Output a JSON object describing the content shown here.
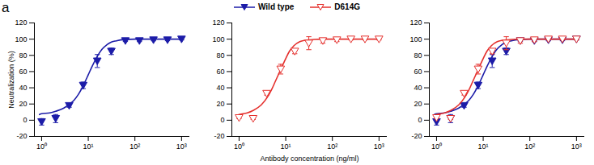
{
  "figure_label": "a",
  "chart_data": [
    {
      "type": "scatter",
      "log": "x",
      "legend": "top",
      "x_label": null,
      "y_label": "Neutralization (%)",
      "xlim": [
        0.7,
        1500
      ],
      "ylim": [
        -20,
        120
      ],
      "xticks": [
        {
          "value": 1,
          "label": "10⁰"
        },
        {
          "value": 10,
          "label": "10¹"
        },
        {
          "value": 100,
          "label": "10²"
        },
        {
          "value": 1000,
          "label": "10³"
        }
      ],
      "yticks": [
        -20,
        0,
        20,
        40,
        60,
        80,
        100,
        120
      ],
      "x": [
        1,
        2,
        3.9,
        7.8,
        15.6,
        31.25,
        62.5,
        125,
        250,
        500,
        1000
      ],
      "series": [
        {
          "name": "Wild type",
          "color": "#1c1ca8",
          "marker": "triangle-down-filled",
          "values": [
            -2,
            2,
            18,
            43,
            73,
            85,
            98,
            98,
            99,
            99,
            100
          ],
          "errors": [
            4,
            5,
            2,
            4,
            8,
            4,
            1,
            1,
            1,
            1,
            1
          ],
          "fit_x": [
            0.9,
            1,
            1.5,
            2,
            3,
            4,
            5,
            6,
            8,
            10,
            12,
            15,
            20,
            25,
            30,
            40,
            60,
            100,
            300,
            1000
          ],
          "fit_values": [
            7,
            8,
            9,
            11,
            15,
            20,
            25,
            31,
            44,
            56,
            66,
            77,
            88,
            93,
            96,
            98,
            99.5,
            100,
            100,
            100
          ]
        }
      ]
    },
    {
      "type": "scatter",
      "log": "x",
      "legend": "top",
      "x_label": "Antibody concentration (ng/ml)",
      "y_label": null,
      "xlim": [
        0.7,
        1500
      ],
      "ylim": [
        -20,
        120
      ],
      "xticks": [
        {
          "value": 1,
          "label": "10⁰"
        },
        {
          "value": 10,
          "label": "10¹"
        },
        {
          "value": 100,
          "label": "10²"
        },
        {
          "value": 1000,
          "label": "10³"
        }
      ],
      "yticks": [
        -20,
        0,
        20,
        40,
        60,
        80,
        100,
        120
      ],
      "x": [
        1,
        2,
        3.9,
        7.8,
        15.6,
        31.25,
        62.5,
        125,
        250,
        500,
        1000
      ],
      "series": [
        {
          "name": "D614G",
          "color": "#e5302d",
          "marker": "triangle-down-open",
          "values": [
            3,
            2,
            33,
            63,
            85,
            95,
            98,
            99,
            100,
            100,
            100
          ],
          "errors": [
            1,
            1,
            2,
            6,
            3,
            8,
            3,
            2,
            1,
            1,
            1
          ],
          "fit_x": [
            0.9,
            1,
            1.5,
            2,
            3,
            4,
            5,
            6,
            8,
            10,
            12,
            15,
            20,
            25,
            30,
            40,
            60,
            100,
            300,
            1000
          ],
          "fit_values": [
            6,
            7,
            9,
            12,
            19,
            28,
            38,
            48,
            64,
            76,
            85,
            92,
            97,
            98.5,
            99,
            99.7,
            100,
            100,
            100,
            100
          ]
        }
      ]
    },
    {
      "type": "scatter",
      "log": "x",
      "legend": "top",
      "x_label": null,
      "y_label": null,
      "xlim": [
        0.7,
        1500
      ],
      "ylim": [
        -20,
        120
      ],
      "xticks": [
        {
          "value": 1,
          "label": "10⁰"
        },
        {
          "value": 10,
          "label": "10¹"
        },
        {
          "value": 100,
          "label": "10²"
        },
        {
          "value": 1000,
          "label": "10³"
        }
      ],
      "yticks": [
        -20,
        0,
        20,
        40,
        60,
        80,
        100,
        120
      ],
      "x": [
        1,
        2,
        3.9,
        7.8,
        15.6,
        31.25,
        62.5,
        125,
        250,
        500,
        1000
      ],
      "series": [
        {
          "name": "Wild type",
          "color": "#1c1ca8",
          "marker": "triangle-down-filled",
          "values": [
            -2,
            2,
            18,
            43,
            73,
            85,
            98,
            98,
            99,
            99,
            100
          ],
          "errors": [
            4,
            5,
            2,
            4,
            8,
            4,
            1,
            1,
            1,
            1,
            1
          ],
          "fit_x": [
            0.9,
            1,
            1.5,
            2,
            3,
            4,
            5,
            6,
            8,
            10,
            12,
            15,
            20,
            25,
            30,
            40,
            60,
            100,
            300,
            1000
          ],
          "fit_values": [
            7,
            8,
            9,
            11,
            15,
            20,
            25,
            31,
            44,
            56,
            66,
            77,
            88,
            93,
            96,
            98,
            99.5,
            100,
            100,
            100
          ]
        },
        {
          "name": "D614G",
          "color": "#e5302d",
          "marker": "triangle-down-open",
          "values": [
            3,
            2,
            33,
            63,
            85,
            95,
            98,
            99,
            100,
            100,
            100
          ],
          "errors": [
            1,
            1,
            2,
            6,
            3,
            8,
            3,
            2,
            1,
            1,
            1
          ],
          "fit_x": [
            0.9,
            1,
            1.5,
            2,
            3,
            4,
            5,
            6,
            8,
            10,
            12,
            15,
            20,
            25,
            30,
            40,
            60,
            100,
            300,
            1000
          ],
          "fit_values": [
            6,
            7,
            9,
            12,
            19,
            28,
            38,
            48,
            64,
            76,
            85,
            92,
            97,
            98.5,
            99,
            99.7,
            100,
            100,
            100,
            100
          ]
        }
      ]
    }
  ]
}
